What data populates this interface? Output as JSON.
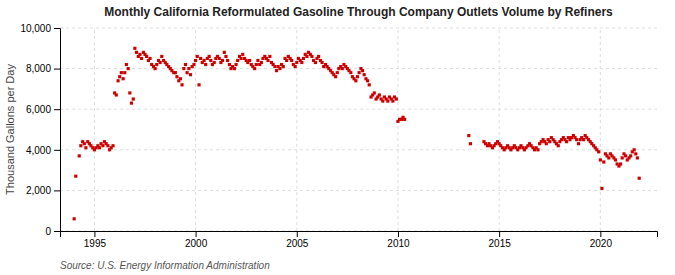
{
  "chart_data": {
    "type": "scatter",
    "title": "Monthly California Reformulated Gasoline Through Company Outlets Volume by Refiners",
    "ylabel": "Thousand Gallons per Day",
    "source": "Source: U.S. Energy Information Administration",
    "color": "#cc0000",
    "marker": "square",
    "grid": true,
    "xlim": [
      1993.3,
      2022.8
    ],
    "xticks": [
      1995,
      2000,
      2005,
      2010,
      2015,
      2020
    ],
    "ylim": [
      0,
      10000
    ],
    "yticks": [
      0,
      {
        "value": 2000,
        "label": "2,000"
      },
      {
        "value": 4000,
        "label": "4,000"
      },
      {
        "value": 6000,
        "label": "6,000"
      },
      {
        "value": 8000,
        "label": "8,000"
      },
      {
        "value": 10000,
        "label": "10,000"
      }
    ],
    "x": [
      1994.0,
      1994.08,
      1994.25,
      1994.33,
      1994.42,
      1994.5,
      1994.58,
      1994.67,
      1994.75,
      1994.83,
      1994.92,
      1995.0,
      1995.08,
      1995.17,
      1995.25,
      1995.33,
      1995.42,
      1995.5,
      1995.58,
      1995.67,
      1995.75,
      1995.83,
      1995.92,
      1996.0,
      1996.08,
      1996.17,
      1996.25,
      1996.33,
      1996.42,
      1996.5,
      1996.58,
      1996.67,
      1996.75,
      1996.83,
      1996.92,
      1997.0,
      1997.08,
      1997.17,
      1997.25,
      1997.33,
      1997.42,
      1997.5,
      1997.58,
      1997.67,
      1997.75,
      1997.83,
      1997.92,
      1998.0,
      1998.08,
      1998.17,
      1998.25,
      1998.33,
      1998.42,
      1998.5,
      1998.58,
      1998.67,
      1998.75,
      1998.83,
      1998.92,
      1999.0,
      1999.08,
      1999.17,
      1999.25,
      1999.33,
      1999.42,
      1999.5,
      1999.58,
      1999.67,
      1999.75,
      1999.83,
      1999.92,
      2000.0,
      2000.08,
      2000.17,
      2000.25,
      2000.33,
      2000.42,
      2000.5,
      2000.58,
      2000.67,
      2000.75,
      2000.83,
      2000.92,
      2001.0,
      2001.08,
      2001.17,
      2001.25,
      2001.33,
      2001.42,
      2001.5,
      2001.58,
      2001.67,
      2001.75,
      2001.83,
      2001.92,
      2002.0,
      2002.08,
      2002.17,
      2002.25,
      2002.33,
      2002.42,
      2002.5,
      2002.58,
      2002.67,
      2002.75,
      2002.83,
      2002.92,
      2003.0,
      2003.08,
      2003.17,
      2003.25,
      2003.33,
      2003.42,
      2003.5,
      2003.58,
      2003.67,
      2003.75,
      2003.83,
      2003.92,
      2004.0,
      2004.08,
      2004.17,
      2004.25,
      2004.33,
      2004.42,
      2004.5,
      2004.58,
      2004.67,
      2004.75,
      2004.83,
      2004.92,
      2005.0,
      2005.08,
      2005.17,
      2005.25,
      2005.33,
      2005.42,
      2005.5,
      2005.58,
      2005.67,
      2005.75,
      2005.83,
      2005.92,
      2006.0,
      2006.08,
      2006.17,
      2006.25,
      2006.33,
      2006.42,
      2006.5,
      2006.58,
      2006.67,
      2006.75,
      2006.83,
      2006.92,
      2007.0,
      2007.08,
      2007.17,
      2007.25,
      2007.33,
      2007.42,
      2007.5,
      2007.58,
      2007.67,
      2007.75,
      2007.83,
      2007.92,
      2008.0,
      2008.08,
      2008.17,
      2008.25,
      2008.33,
      2008.42,
      2008.5,
      2008.58,
      2008.67,
      2008.75,
      2008.83,
      2008.92,
      2009.0,
      2009.08,
      2009.17,
      2009.25,
      2009.33,
      2009.42,
      2009.5,
      2009.58,
      2009.67,
      2009.75,
      2009.83,
      2009.92,
      2010.0,
      2010.08,
      2010.17,
      2010.25,
      2010.33,
      2013.5,
      2013.58,
      2014.25,
      2014.33,
      2014.42,
      2014.5,
      2014.58,
      2014.67,
      2014.75,
      2014.83,
      2014.92,
      2015.0,
      2015.08,
      2015.17,
      2015.25,
      2015.33,
      2015.42,
      2015.5,
      2015.58,
      2015.67,
      2015.75,
      2015.83,
      2015.92,
      2016.0,
      2016.08,
      2016.17,
      2016.25,
      2016.33,
      2016.42,
      2016.5,
      2016.58,
      2016.67,
      2016.75,
      2016.83,
      2016.92,
      2017.0,
      2017.08,
      2017.17,
      2017.25,
      2017.33,
      2017.42,
      2017.5,
      2017.58,
      2017.67,
      2017.75,
      2017.83,
      2017.92,
      2018.0,
      2018.08,
      2018.17,
      2018.25,
      2018.33,
      2018.42,
      2018.5,
      2018.58,
      2018.67,
      2018.75,
      2018.83,
      2018.92,
      2019.0,
      2019.08,
      2019.17,
      2019.25,
      2019.33,
      2019.42,
      2019.5,
      2019.58,
      2019.67,
      2019.75,
      2019.83,
      2019.92,
      2020.0,
      2020.08,
      2020.17,
      2020.25,
      2020.33,
      2020.42,
      2020.5,
      2020.58,
      2020.67,
      2020.75,
      2020.83,
      2020.92,
      2021.0,
      2021.08,
      2021.17,
      2021.25,
      2021.33,
      2021.42,
      2021.5,
      2021.58,
      2021.67,
      2021.75,
      2021.83,
      2021.92
    ],
    "values": [
      600,
      2700,
      3700,
      4200,
      4400,
      4300,
      4100,
      4400,
      4300,
      4200,
      4100,
      4000,
      4100,
      4200,
      4100,
      4300,
      4200,
      4400,
      4300,
      4200,
      4000,
      4100,
      4200,
      6800,
      6700,
      7400,
      7600,
      7800,
      7500,
      7800,
      8200,
      8000,
      6800,
      6300,
      6500,
      9000,
      8800,
      8600,
      8700,
      8500,
      8800,
      8700,
      8600,
      8400,
      8500,
      8200,
      8100,
      8000,
      8200,
      8400,
      8300,
      8600,
      8400,
      8300,
      8200,
      8100,
      8000,
      7900,
      7800,
      7800,
      7600,
      7400,
      7500,
      7200,
      8000,
      8200,
      7800,
      8000,
      7700,
      8100,
      8200,
      8400,
      8600,
      7200,
      8500,
      8300,
      8400,
      8200,
      8500,
      8600,
      8400,
      8200,
      8300,
      8500,
      8600,
      8500,
      8300,
      8400,
      8800,
      8600,
      8400,
      8200,
      8000,
      8100,
      8000,
      8200,
      8400,
      8600,
      8500,
      8700,
      8500,
      8400,
      8300,
      8400,
      8200,
      8100,
      8000,
      8200,
      8400,
      8200,
      8300,
      8500,
      8600,
      8500,
      8400,
      8600,
      8300,
      8200,
      8100,
      7900,
      8100,
      8000,
      8200,
      8100,
      8500,
      8400,
      8600,
      8500,
      8400,
      8200,
      8100,
      8300,
      8500,
      8400,
      8300,
      8500,
      8700,
      8600,
      8800,
      8700,
      8600,
      8400,
      8300,
      8500,
      8600,
      8400,
      8300,
      8100,
      8200,
      8100,
      8000,
      7900,
      7800,
      7700,
      7600,
      7800,
      8000,
      8100,
      8000,
      8200,
      8100,
      8000,
      7900,
      7800,
      7600,
      7500,
      7400,
      7600,
      7800,
      8000,
      7900,
      7700,
      7500,
      7400,
      7200,
      6600,
      6700,
      6800,
      6500,
      6600,
      6700,
      6500,
      6400,
      6600,
      6500,
      6400,
      6600,
      6500,
      6400,
      6600,
      6500,
      5400,
      5500,
      5500,
      5600,
      5500,
      4700,
      4300,
      4400,
      4300,
      4200,
      4300,
      4200,
      4100,
      4200,
      4300,
      4400,
      4300,
      4200,
      4100,
      4000,
      4100,
      4200,
      4100,
      4000,
      4100,
      4200,
      4100,
      4000,
      4100,
      4200,
      4100,
      4000,
      4100,
      4200,
      4300,
      4200,
      4100,
      4000,
      4100,
      4000,
      4300,
      4400,
      4500,
      4400,
      4300,
      4500,
      4400,
      4600,
      4500,
      4400,
      4300,
      4200,
      4400,
      4500,
      4600,
      4500,
      4400,
      4600,
      4500,
      4600,
      4700,
      4600,
      4500,
      4300,
      4500,
      4600,
      4500,
      4700,
      4600,
      4500,
      4400,
      4300,
      4200,
      4100,
      4000,
      3900,
      3500,
      2100,
      3400,
      3800,
      3700,
      3600,
      3800,
      3700,
      3600,
      3500,
      3300,
      3200,
      3300,
      3600,
      3800,
      3700,
      3500,
      3600,
      3700,
      3900,
      4000,
      3800,
      3600,
      2600
    ]
  }
}
